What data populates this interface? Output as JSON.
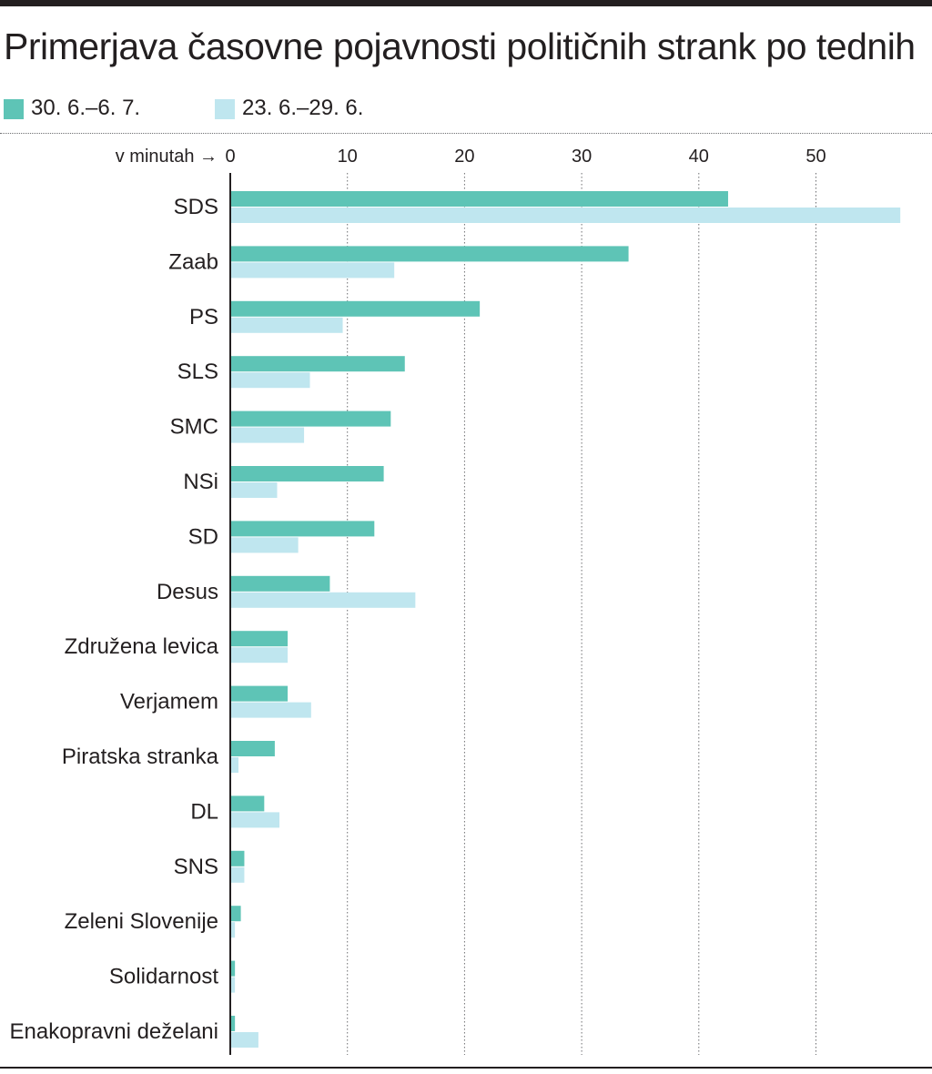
{
  "title": "Primerjava časovne pojavnosti političnih strank po tednih",
  "colors": {
    "series_current": "#5ec4b6",
    "series_previous": "#bfe6ef",
    "axis": "#231f20",
    "grid": "#6d6e71"
  },
  "legend": [
    {
      "label": "30. 6.–6. 7.",
      "color": "#5ec4b6"
    },
    {
      "label": "23. 6.–29. 6.",
      "color": "#bfe6ef"
    }
  ],
  "chart_data": {
    "type": "bar",
    "orientation": "horizontal",
    "title": "Primerjava časovne pojavnosti političnih strank po tednih",
    "axis_label": "v minutah →",
    "xlim": [
      0,
      57.5
    ],
    "xticks": [
      0,
      10,
      20,
      30,
      40,
      50
    ],
    "grid": "vertical dotted",
    "legend_position": "top-left",
    "categories": [
      "SDS",
      "Zaab",
      "PS",
      "SLS",
      "SMC",
      "NSi",
      "SD",
      "Desus",
      "Združena levica",
      "Verjamem",
      "Piratska stranka",
      "DL",
      "SNS",
      "Zeleni Slovenije",
      "Solidarnost",
      "Enakopravni deželani"
    ],
    "series": [
      {
        "name": "30. 6.–6. 7.",
        "color": "#5ec4b6",
        "values": [
          42.5,
          34,
          21.3,
          14.9,
          13.7,
          13.1,
          12.3,
          8.5,
          4.9,
          4.9,
          3.8,
          2.9,
          1.2,
          0.9,
          0.4,
          0.4
        ]
      },
      {
        "name": "23. 6.–29. 6.",
        "color": "#bfe6ef",
        "values": [
          57.2,
          14,
          9.6,
          6.8,
          6.3,
          4,
          5.8,
          15.8,
          4.9,
          6.9,
          0.7,
          4.2,
          1.2,
          0.4,
          0.4,
          2.4
        ]
      }
    ]
  }
}
